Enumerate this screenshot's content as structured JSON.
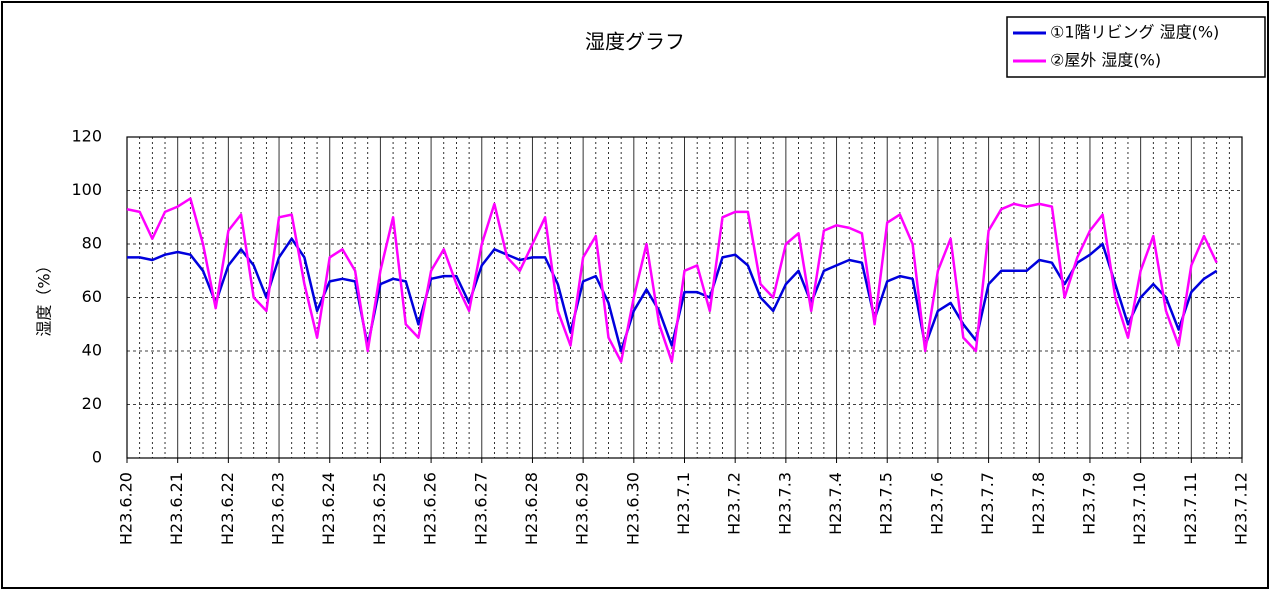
{
  "chart_data": {
    "type": "line",
    "title": "湿度グラフ",
    "y_label": "湿度（%）",
    "x": [
      0,
      0.25,
      0.5,
      0.75,
      1,
      1.25,
      1.5,
      1.75,
      2,
      2.25,
      2.5,
      2.75,
      3,
      3.25,
      3.5,
      3.75,
      4,
      4.25,
      4.5,
      4.75,
      5,
      5.25,
      5.5,
      5.75,
      6,
      6.25,
      6.5,
      6.75,
      7,
      7.25,
      7.5,
      7.75,
      8,
      8.25,
      8.5,
      8.75,
      9,
      9.25,
      9.5,
      9.75,
      10,
      10.25,
      10.5,
      10.75,
      11,
      11.25,
      11.5,
      11.75,
      12,
      12.25,
      12.5,
      12.75,
      13,
      13.25,
      13.5,
      13.75,
      14,
      14.25,
      14.5,
      14.75,
      15,
      15.25,
      15.5,
      15.75,
      16,
      16.25,
      16.5,
      16.75,
      17,
      17.25,
      17.5,
      17.75,
      18,
      18.25,
      18.5,
      18.75,
      19,
      19.25,
      19.5,
      19.75,
      20,
      20.25,
      20.5,
      20.75,
      21,
      21.25,
      21.5
    ],
    "series": [
      {
        "name": "①1階リビング 湿度(%)",
        "color": "#0000dd",
        "values": [
          75,
          75,
          74,
          76,
          77,
          76,
          70,
          58,
          72,
          78,
          72,
          60,
          75,
          82,
          75,
          55,
          66,
          67,
          66,
          42,
          65,
          67,
          66,
          50,
          67,
          68,
          68,
          58,
          72,
          78,
          76,
          74,
          75,
          75,
          65,
          47,
          66,
          68,
          58,
          40,
          55,
          63,
          55,
          42,
          62,
          62,
          60,
          75,
          76,
          72,
          60,
          55,
          65,
          70,
          58,
          70,
          72,
          74,
          73,
          52,
          66,
          68,
          67,
          42,
          55,
          58,
          50,
          44,
          65,
          70,
          70,
          70,
          74,
          73,
          65,
          73,
          76,
          80,
          65,
          50,
          60,
          65,
          60,
          48,
          62,
          67,
          70
        ]
      },
      {
        "name": "②屋外 湿度(%)",
        "color": "#ff00ff",
        "values": [
          93,
          92,
          82,
          92,
          94,
          97,
          80,
          56,
          85,
          91,
          60,
          55,
          90,
          91,
          65,
          45,
          75,
          78,
          70,
          40,
          70,
          90,
          50,
          45,
          70,
          78,
          65,
          55,
          80,
          95,
          75,
          70,
          80,
          90,
          55,
          42,
          75,
          83,
          45,
          36,
          60,
          80,
          50,
          36,
          70,
          72,
          55,
          90,
          92,
          92,
          65,
          60,
          80,
          84,
          55,
          85,
          87,
          86,
          84,
          50,
          88,
          91,
          80,
          40,
          70,
          82,
          45,
          40,
          85,
          93,
          95,
          94,
          95,
          94,
          60,
          75,
          85,
          91,
          60,
          45,
          70,
          83,
          55,
          42,
          72,
          83,
          73
        ]
      }
    ],
    "xlim": [
      0,
      22
    ],
    "xticks": [
      {
        "value": 0,
        "label": "H23.6.20"
      },
      {
        "value": 1,
        "label": "H23.6.21"
      },
      {
        "value": 2,
        "label": "H23.6.22"
      },
      {
        "value": 3,
        "label": "H23.6.23"
      },
      {
        "value": 4,
        "label": "H23.6.24"
      },
      {
        "value": 5,
        "label": "H23.6.25"
      },
      {
        "value": 6,
        "label": "H23.6.26"
      },
      {
        "value": 7,
        "label": "H23.6.27"
      },
      {
        "value": 8,
        "label": "H23.6.28"
      },
      {
        "value": 9,
        "label": "H23.6.29"
      },
      {
        "value": 10,
        "label": "H23.6.30"
      },
      {
        "value": 11,
        "label": "H23.7.1"
      },
      {
        "value": 12,
        "label": "H23.7.2"
      },
      {
        "value": 13,
        "label": "H23.7.3"
      },
      {
        "value": 14,
        "label": "H23.7.4"
      },
      {
        "value": 15,
        "label": "H23.7.5"
      },
      {
        "value": 16,
        "label": "H23.7.6"
      },
      {
        "value": 17,
        "label": "H23.7.7"
      },
      {
        "value": 18,
        "label": "H23.7.8"
      },
      {
        "value": 19,
        "label": "H23.7.9"
      },
      {
        "value": 20,
        "label": "H23.7.10"
      },
      {
        "value": 21,
        "label": "H23.7.11"
      },
      {
        "value": 22,
        "label": "H23.7.12"
      }
    ],
    "ylim": [
      0,
      120
    ],
    "yticks": [
      0,
      20,
      40,
      60,
      80,
      100,
      120
    ],
    "grid": true,
    "legend": "top-right"
  }
}
